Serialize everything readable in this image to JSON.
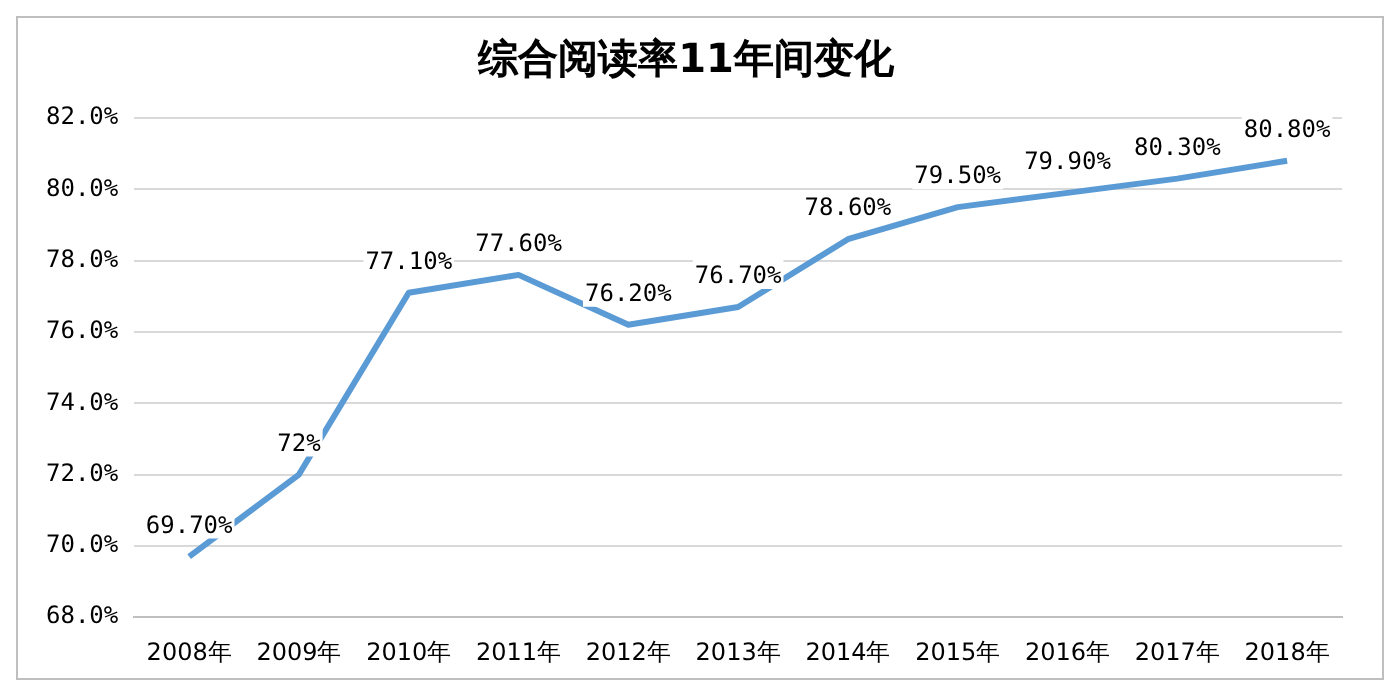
{
  "chart_data": {
    "type": "line",
    "title": "综合阅读率11年间变化",
    "categories": [
      "2008年",
      "2009年",
      "2010年",
      "2011年",
      "2012年",
      "2013年",
      "2014年",
      "2015年",
      "2016年",
      "2017年",
      "2018年"
    ],
    "series": [
      {
        "color": "#5b9bd5",
        "values": [
          69.7,
          72,
          77.1,
          77.6,
          76.2,
          76.7,
          78.6,
          79.5,
          79.9,
          80.3,
          80.8
        ],
        "value_labels": [
          "69.70%",
          "72%",
          "77.10%",
          "77.60%",
          "76.20%",
          "76.70%",
          "78.60%",
          "79.50%",
          "79.90%",
          "80.30%",
          "80.80%"
        ]
      }
    ],
    "ylim": [
      68,
      82
    ],
    "yticks": [
      {
        "value": 68,
        "label": "68.0%"
      },
      {
        "value": 70,
        "label": "70.0%"
      },
      {
        "value": 72,
        "label": "72.0%"
      },
      {
        "value": 74,
        "label": "74.0%"
      },
      {
        "value": 76,
        "label": "76.0%"
      },
      {
        "value": 78,
        "label": "78.0%"
      },
      {
        "value": 80,
        "label": "80.0%"
      },
      {
        "value": 82,
        "label": "82.0%"
      }
    ],
    "grid": "y",
    "marker": "none",
    "line_style": "solid",
    "legend": false
  }
}
